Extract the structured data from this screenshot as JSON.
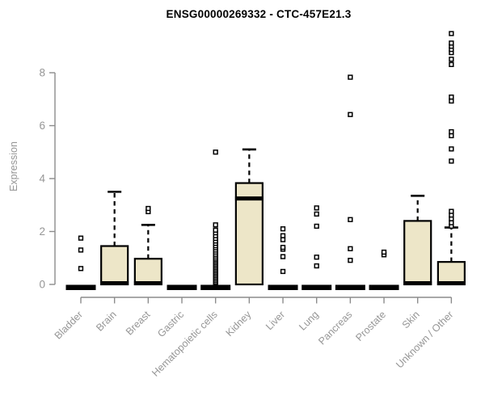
{
  "chart_data": {
    "type": "boxplot",
    "title": "ENSG00000269332 - CTC-457E21.3",
    "ylabel": "Expression",
    "ylim": [
      0,
      9.6
    ],
    "yticks": [
      0,
      2,
      4,
      6,
      8
    ],
    "grid": false,
    "legend": "none",
    "categories": [
      "Bladder",
      "Brain",
      "Breast",
      "Gastric",
      "Hematopoietic cells",
      "Kidney",
      "Liver",
      "Lung",
      "Pancreas",
      "Prostate",
      "Skin",
      "Unknown / Other"
    ],
    "groups": [
      {
        "name": "Bladder",
        "collapsed": true,
        "q1": 0,
        "median": 0,
        "q3": 0,
        "whisker_low": 0,
        "whisker_high": 0,
        "outliers": [
          0.6,
          1.3,
          1.75
        ]
      },
      {
        "name": "Brain",
        "collapsed": false,
        "q1": 0,
        "median": 0,
        "q3": 1.45,
        "whisker_low": 0,
        "whisker_high": 3.5,
        "outliers": []
      },
      {
        "name": "Breast",
        "collapsed": false,
        "q1": 0,
        "median": 0,
        "q3": 0.97,
        "whisker_low": 0,
        "whisker_high": 2.25,
        "outliers": [
          2.75,
          2.87
        ]
      },
      {
        "name": "Gastric",
        "collapsed": true,
        "q1": 0,
        "median": 0,
        "q3": 0,
        "whisker_low": 0,
        "whisker_high": 0,
        "outliers": []
      },
      {
        "name": "Hematopoietic cells",
        "collapsed": true,
        "q1": 0,
        "median": 0,
        "q3": 0,
        "whisker_low": 0,
        "whisker_high": 0,
        "outliers": [
          0.05,
          0.1,
          0.16,
          0.22,
          0.28,
          0.34,
          0.4,
          0.46,
          0.52,
          0.58,
          0.64,
          0.7,
          0.76,
          0.82,
          0.88,
          0.94,
          1.0,
          1.07,
          1.14,
          1.22,
          1.3,
          1.38,
          1.46,
          1.55,
          1.64,
          1.74,
          1.84,
          1.95,
          2.05,
          2.25,
          5.0
        ]
      },
      {
        "name": "Kidney",
        "collapsed": false,
        "q1": 0,
        "median": 3.25,
        "q3": 3.83,
        "whisker_low": 0,
        "whisker_high": 5.1,
        "outliers": []
      },
      {
        "name": "Liver",
        "collapsed": true,
        "q1": 0,
        "median": 0,
        "q3": 0,
        "whisker_low": 0,
        "whisker_high": 0,
        "outliers": [
          0.49,
          1.05,
          1.33,
          1.4,
          1.69,
          1.84,
          2.1
        ]
      },
      {
        "name": "Lung",
        "collapsed": true,
        "q1": 0,
        "median": 0,
        "q3": 0,
        "whisker_low": 0,
        "whisker_high": 0,
        "outliers": [
          0.7,
          1.03,
          2.2,
          2.66,
          2.89
        ]
      },
      {
        "name": "Pancreas",
        "collapsed": true,
        "q1": 0,
        "median": 0,
        "q3": 0,
        "whisker_low": 0,
        "whisker_high": 0,
        "outliers": [
          0.91,
          1.35,
          2.45,
          6.42,
          7.83
        ]
      },
      {
        "name": "Prostate",
        "collapsed": true,
        "q1": 0,
        "median": 0,
        "q3": 0,
        "whisker_low": 0,
        "whisker_high": 0,
        "outliers": [
          1.12,
          1.22
        ]
      },
      {
        "name": "Skin",
        "collapsed": false,
        "q1": 0,
        "median": 0,
        "q3": 2.4,
        "whisker_low": 0,
        "whisker_high": 3.35,
        "outliers": []
      },
      {
        "name": "Unknown / Other",
        "collapsed": false,
        "q1": 0,
        "median": 0,
        "q3": 0.85,
        "whisker_low": 0,
        "whisker_high": 2.15,
        "outliers": [
          2.2,
          2.33,
          2.48,
          2.62,
          2.76,
          4.66,
          5.12,
          5.62,
          5.77,
          6.93,
          7.08,
          8.31,
          8.51,
          8.76,
          8.88,
          9.0,
          9.12,
          9.48
        ]
      }
    ],
    "colors": {
      "box_fill": "#EDE6C8",
      "box_stroke": "#000000",
      "collapsed_bar": "#000000",
      "axis_line": "#8C8C8C",
      "tick_text": "#969696",
      "title_text": "#000000",
      "background": "#FFFFFF"
    }
  }
}
